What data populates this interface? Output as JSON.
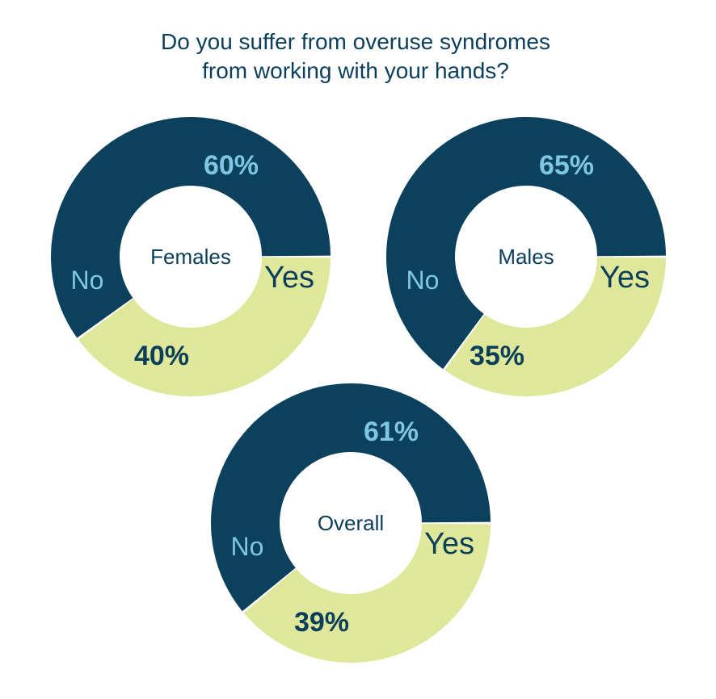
{
  "title": {
    "line1": "Do you suffer from overuse syndromes",
    "line2": "from working with your hands?"
  },
  "colors": {
    "no": "#0b415c",
    "yes": "#dfe89a",
    "no_text": "#7fc6e2",
    "yes_text": "#0b3e5b",
    "title": "#0b3e5b"
  },
  "chart_data": [
    {
      "type": "pie",
      "center_label": "Females",
      "categories": [
        "No",
        "Yes"
      ],
      "values": [
        60,
        40
      ],
      "value_labels": [
        "60%",
        "40%"
      ]
    },
    {
      "type": "pie",
      "center_label": "Males",
      "categories": [
        "No",
        "Yes"
      ],
      "values": [
        65,
        35
      ],
      "value_labels": [
        "65%",
        "35%"
      ]
    },
    {
      "type": "pie",
      "center_label": "Overall",
      "categories": [
        "No",
        "Yes"
      ],
      "values": [
        61,
        39
      ],
      "value_labels": [
        "61%",
        "39%"
      ]
    }
  ]
}
